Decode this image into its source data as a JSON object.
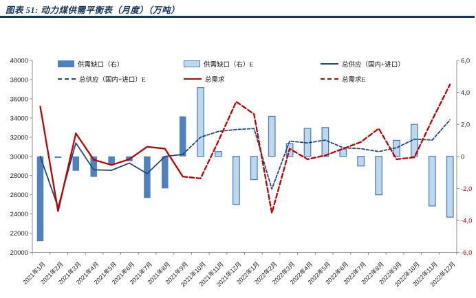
{
  "header": {
    "title": "图表 51:  动力煤供需平衡表（月度）（万吨）"
  },
  "legend": [
    {
      "label": "供需缺口（右）",
      "marker": "bar",
      "fill": "#4F81BD",
      "stroke": "#4F81BD",
      "row": 0,
      "col": 0
    },
    {
      "label": "供需缺口（右）E",
      "marker": "bar",
      "fill": "#BDD7EE",
      "stroke": "#4F81BD",
      "row": 0,
      "col": 1
    },
    {
      "label": "总供应（国内+进口）",
      "marker": "line",
      "color": "#1F497D",
      "dash": false,
      "row": 0,
      "col": 2
    },
    {
      "label": "总供应（国内+进口）E",
      "marker": "line",
      "color": "#1F497D",
      "dash": true,
      "row": 1,
      "col": 0
    },
    {
      "label": "总需求",
      "marker": "line",
      "color": "#C00000",
      "dash": false,
      "row": 1,
      "col": 1
    },
    {
      "label": "总需求E",
      "marker": "line",
      "color": "#C00000",
      "dash": true,
      "row": 1,
      "col": 2
    }
  ],
  "chart_data": {
    "type": "combo-bar-line",
    "categories": [
      "2021年1月",
      "2021年2月",
      "2021年3月",
      "2021年4月",
      "2021年5月",
      "2021年6月",
      "2021年7月",
      "2021年8月",
      "2021年9月",
      "2021年10月",
      "2021年11月",
      "2021年12月",
      "2022年1月",
      "2022年2月",
      "2022年3月",
      "2022年4月",
      "2022年5月",
      "2022年6月",
      "2022年7月",
      "2022年8月",
      "2022年9月",
      "2022年10月",
      "2022年11月",
      "2022年12月"
    ],
    "series": [
      {
        "name": "供需缺口（右）",
        "type": "bar",
        "axis": "right",
        "style": "solid",
        "values": [
          -5300,
          -100,
          -900,
          -1280,
          -500,
          -300,
          -2600,
          -2000,
          2500,
          null,
          null,
          null,
          null,
          null,
          null,
          null,
          null,
          null,
          null,
          null,
          null,
          null,
          null,
          null
        ]
      },
      {
        "name": "供需缺口（右）E",
        "type": "bar",
        "axis": "right",
        "style": "outline",
        "values": [
          null,
          null,
          null,
          null,
          null,
          null,
          null,
          null,
          null,
          4300,
          300,
          -3000,
          -1450,
          2500,
          800,
          1750,
          1800,
          450,
          -600,
          -2400,
          1000,
          2000,
          -3100,
          -3800
        ]
      },
      {
        "name": "总供应（国内+进口）",
        "type": "line",
        "axis": "left",
        "dash": false,
        "color": "#1F497D",
        "values": [
          30000,
          24700,
          31400,
          28600,
          28550,
          29300,
          28200,
          30000,
          30200,
          null,
          null,
          null,
          null,
          null,
          null,
          null,
          null,
          null,
          null,
          null,
          null,
          null,
          null,
          null
        ]
      },
      {
        "name": "总供应（国内+进口）E",
        "type": "line",
        "axis": "left",
        "dash": true,
        "color": "#1F497D",
        "values": [
          null,
          null,
          null,
          null,
          null,
          null,
          null,
          null,
          30200,
          32000,
          32600,
          32800,
          32900,
          26600,
          31600,
          31400,
          31700,
          30900,
          30800,
          30500,
          30900,
          31800,
          31700,
          33800
        ]
      },
      {
        "name": "总需求",
        "type": "line",
        "axis": "left",
        "dash": false,
        "color": "#C00000",
        "values": [
          35200,
          24300,
          32400,
          29650,
          29100,
          29700,
          31000,
          30800,
          27900,
          null,
          null,
          null,
          null,
          null,
          null,
          null,
          null,
          null,
          null,
          null,
          null,
          null,
          null,
          null
        ]
      },
      {
        "name": "总需求E",
        "type": "line",
        "axis": "left",
        "dash": true,
        "color": "#C00000",
        "values": [
          null,
          null,
          null,
          null,
          null,
          null,
          null,
          null,
          27900,
          27700,
          31600,
          35700,
          34400,
          24100,
          30800,
          29700,
          30100,
          30800,
          31500,
          32900,
          29700,
          29900,
          33800,
          37500
        ]
      }
    ],
    "left_axis": {
      "min": 20000,
      "max": 40000,
      "step": 2000,
      "labels": [
        "40000",
        "38000",
        "36000",
        "34000",
        "32000",
        "30000",
        "28000",
        "26000",
        "24000",
        "22000",
        "20000"
      ]
    },
    "right_axis": {
      "min": -6000,
      "max": 6000,
      "step": 2000,
      "labels": [
        "6,0",
        "4,0",
        "2,0",
        "0",
        "-2,0",
        "-4,0",
        "-6,0"
      ],
      "negative_color": "#C00000"
    },
    "grid": false,
    "legend_position": "top"
  },
  "colors": {
    "title": "#17365D",
    "rule": "#17365D",
    "bar_actual": "#4F81BD",
    "bar_estimate_fill": "#BDD7EE",
    "bar_estimate_stroke": "#4F81BD",
    "supply_line": "#1F497D",
    "demand_line": "#C00000",
    "axis": "#8C8C8C",
    "axis_text": "#1a1a1a"
  }
}
